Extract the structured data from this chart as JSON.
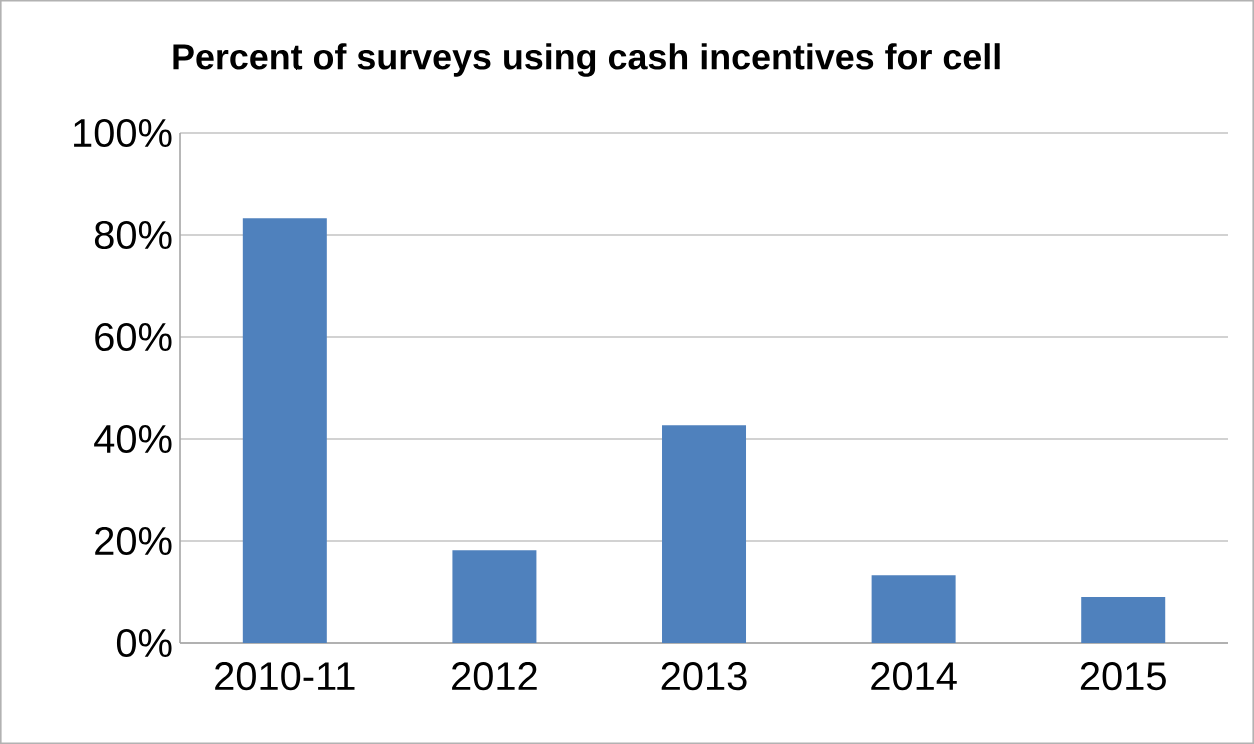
{
  "chart_data": {
    "type": "bar",
    "title": "Percent of surveys using cash incentives for cell",
    "categories": [
      "2010-11",
      "2012",
      "2013",
      "2014",
      "2015"
    ],
    "values": [
      83.3,
      18.2,
      42.7,
      13.3,
      9.0
    ],
    "color": "#4f81bd",
    "ylim": [
      0,
      100
    ],
    "yticks": [
      {
        "value": 0,
        "label": "0%"
      },
      {
        "value": 20,
        "label": "20%"
      },
      {
        "value": 40,
        "label": "40%"
      },
      {
        "value": 60,
        "label": "60%"
      },
      {
        "value": 80,
        "label": "80%"
      },
      {
        "value": 100,
        "label": "100%"
      }
    ],
    "grid": "y"
  }
}
